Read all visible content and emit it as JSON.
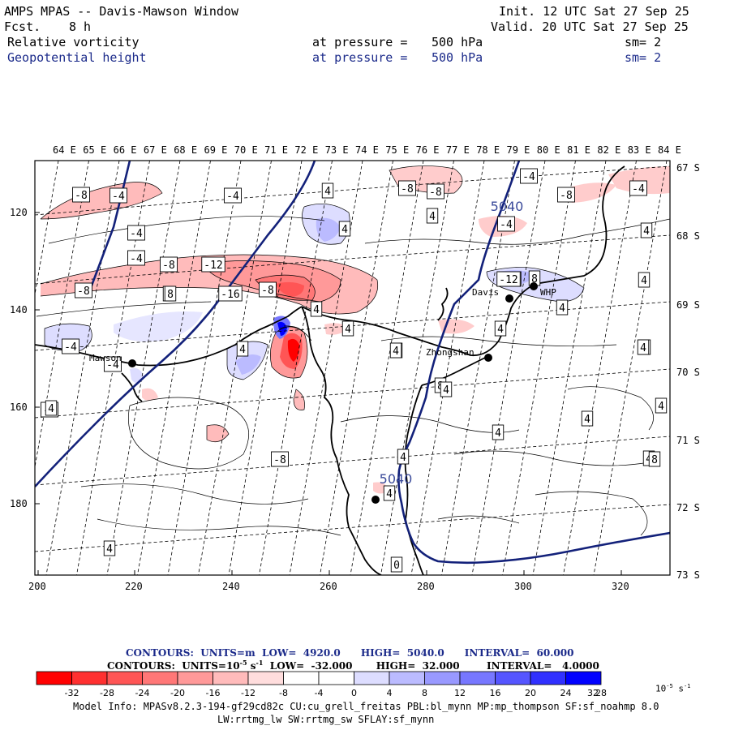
{
  "header": {
    "title": "AMPS MPAS -- Davis-Mawson Window",
    "fcst_label": "Fcst.",
    "fcst_value": "8 h",
    "init": "Init. 12 UTC Sat 27 Sep 25",
    "valid": "Valid. 20 UTC Sat 27 Sep 25",
    "field1": {
      "name": "Relative vorticity",
      "pressure": "at pressure =",
      "level": "500 hPa",
      "smooth": "sm= 2"
    },
    "field2": {
      "name": "Geopotential height",
      "pressure": "at pressure =",
      "level": "500 hPa",
      "smooth": "sm= 2"
    }
  },
  "map": {
    "lon_labels": [
      "64 E",
      "65 E",
      "66 E",
      "67 E",
      "68 E",
      "69 E",
      "70 E",
      "71 E",
      "72 E",
      "73 E",
      "74 E",
      "75 E",
      "76 E",
      "77 E",
      "78 E",
      "79 E",
      "80 E",
      "81 E",
      "82 E",
      "83 E",
      "84 E"
    ],
    "lat_labels": [
      "67 S",
      "68 S",
      "69 S",
      "70 S",
      "71 S",
      "72 S",
      "73 S"
    ],
    "x_ticks": [
      "200",
      "220",
      "240",
      "260",
      "280",
      "300",
      "320"
    ],
    "y_ticks": [
      "120",
      "140",
      "160",
      "180"
    ],
    "stations": [
      {
        "name": "Mawson"
      },
      {
        "name": "Davis"
      },
      {
        "name": "WHP"
      },
      {
        "name": "Zhongshan"
      },
      {
        "name": ""
      }
    ],
    "height_labels": [
      "5040",
      "5040"
    ],
    "vort_labels": [
      "-8",
      "-4",
      "-4",
      "4",
      "-4",
      "-8",
      "-8",
      "-4",
      "-8",
      "-4",
      "-4",
      "-8",
      "-12",
      "-4",
      "-8",
      "4",
      "-16",
      "-8",
      "4",
      "4",
      "4",
      "8",
      "4",
      "4",
      "4",
      "4",
      "4",
      "-4",
      "-4",
      "4",
      "4",
      "4",
      "8",
      "-8",
      "-12",
      "8",
      "4",
      "4",
      "4",
      "4",
      "4",
      "-8",
      "4",
      "8",
      "4",
      "4",
      "4",
      "4",
      "0",
      "-12",
      "4"
    ]
  },
  "legend": {
    "line1": {
      "contours": "CONTOURS:",
      "units": "UNITS=m",
      "low": "LOW=",
      "low_val": "4920.0",
      "high": "HIGH=",
      "high_val": "5040.0",
      "interval": "INTERVAL=",
      "interval_val": "60.000"
    },
    "line2": {
      "contours": "CONTOURS:",
      "units": "UNITS=10",
      "units_exp": "-5",
      "units_tail": "s",
      "units_tail_exp": "-1",
      "low": "LOW=",
      "low_val": "-32.000",
      "high": "HIGH=",
      "high_val": "32.000",
      "interval": "INTERVAL=",
      "interval_val": "4.0000"
    },
    "colors": [
      "#ff0000",
      "#ff3030",
      "#ff5555",
      "#ff7777",
      "#ff9999",
      "#ffbbbb",
      "#ffdddd",
      "#ffffff",
      "#ffffff",
      "#ddddff",
      "#bbbbff",
      "#9999ff",
      "#7777ff",
      "#5555ff",
      "#3030ff",
      "#0000ff"
    ],
    "ticks": [
      "-32",
      "-28",
      "-24",
      "-20",
      "-16",
      "-12",
      "-8",
      "-4",
      "0",
      "4",
      "8",
      "12",
      "16",
      "20",
      "24",
      "28",
      "32"
    ],
    "unit": "10",
    "unit_exp": "-5",
    "unit_tail": "s",
    "unit_tail_exp": "-1"
  },
  "footer": {
    "line1": "Model Info: MPASv8.2.3-194-gf29cd82c CU:cu_grell_freitas PBL:bl_mynn MP:mp_thompson SF:sf_noahmp 8.0",
    "line2": "LW:rrtmg_lw SW:rrtmg_sw SFLAY:sf_mynn"
  }
}
